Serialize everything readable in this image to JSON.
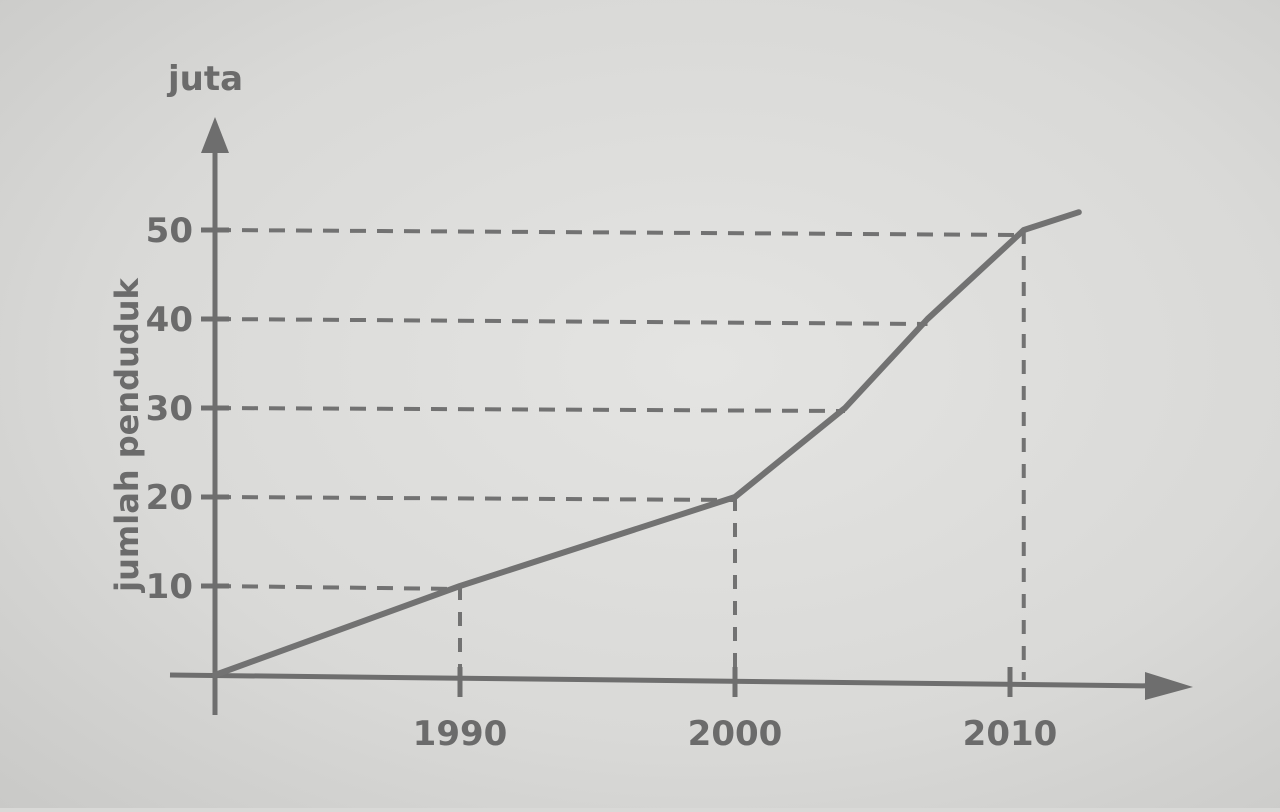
{
  "chart_data": {
    "type": "line",
    "title": "",
    "xlabel": "",
    "ylabel": "jumlah penduduk",
    "y_unit": "juta",
    "x_ticks": [
      1990,
      2000,
      2010
    ],
    "y_ticks": [
      10,
      20,
      30,
      40,
      50
    ],
    "y_tick_labels": [
      "10",
      "20",
      "30",
      "40",
      "50"
    ],
    "xlim": [
      1981,
      2012
    ],
    "ylim": [
      0,
      50
    ],
    "grid": false,
    "series": [
      {
        "values": [
          {
            "x": 1981,
            "y": 0
          },
          {
            "x": 1990,
            "y": 10
          },
          {
            "x": 2000,
            "y": 20
          },
          {
            "x": 2004,
            "y": 30
          },
          {
            "x": 2007,
            "y": 40
          },
          {
            "x": 2010.5,
            "y": 50
          },
          {
            "x": 2012.5,
            "y": 52
          }
        ]
      }
    ],
    "reference_lines": [
      {
        "y": 10,
        "x_end": 1990,
        "drop_to_x": 1990
      },
      {
        "y": 20,
        "x_end": 2000,
        "drop_to_x": 2000
      },
      {
        "y": 30,
        "x_end": 2004
      },
      {
        "y": 40,
        "x_end": 2007
      },
      {
        "y": 50,
        "x_end": 2010.5,
        "drop_to_x": 2010.5
      }
    ],
    "colors": {
      "axis": "#6e6e6e",
      "line": "#727272",
      "dash": "#727272",
      "text": "#6b6b6b"
    }
  }
}
